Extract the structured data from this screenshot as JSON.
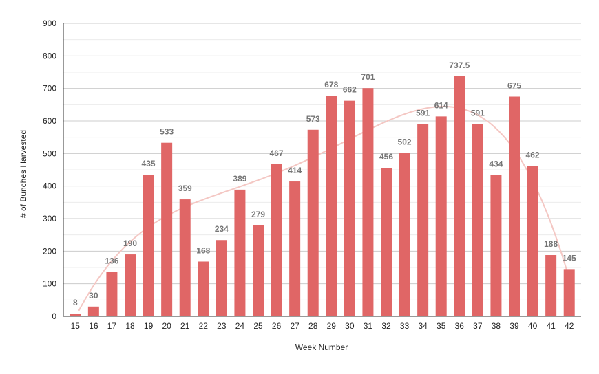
{
  "chart_data": {
    "type": "bar",
    "title": "",
    "xlabel": "Week Number",
    "ylabel": "# of Bunches Harvested",
    "ylim": [
      0,
      900
    ],
    "yticks": [
      0,
      100,
      200,
      300,
      400,
      500,
      600,
      700,
      800,
      900
    ],
    "grid": true,
    "legend": "none",
    "bar_color": "#e06666",
    "trendline": {
      "type": "polynomial",
      "color": "#f4c7c3"
    },
    "categories": [
      "15",
      "16",
      "17",
      "18",
      "19",
      "20",
      "21",
      "22",
      "23",
      "24",
      "25",
      "26",
      "27",
      "28",
      "29",
      "30",
      "31",
      "32",
      "33",
      "34",
      "35",
      "36",
      "37",
      "38",
      "39",
      "40",
      "41",
      "42"
    ],
    "values": [
      8,
      30,
      136,
      190,
      435,
      533,
      359,
      168,
      234,
      389,
      279,
      467,
      414,
      573,
      678,
      662,
      701,
      456,
      502,
      591,
      614,
      737.5,
      591,
      434,
      675,
      462,
      188,
      145
    ],
    "labels": [
      "8",
      "30",
      "136",
      "190",
      "435",
      "533",
      "359",
      "168",
      "234",
      "389",
      "279",
      "467",
      "414",
      "573",
      "678",
      "662",
      "701",
      "456",
      "502",
      "591",
      "614",
      "737.5",
      "591",
      "434",
      "675",
      "462",
      "188",
      "145"
    ]
  }
}
